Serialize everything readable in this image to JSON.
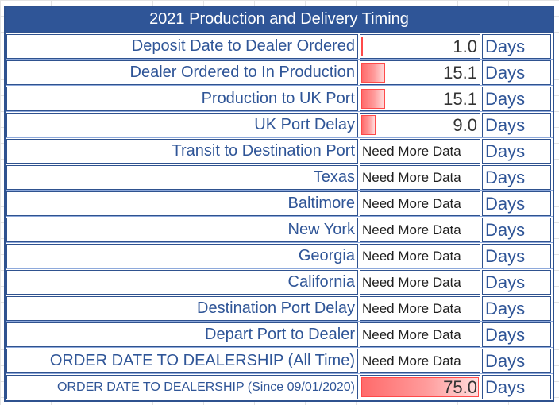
{
  "title": "2021 Production and Delivery Timing",
  "max_value": 75.0,
  "rows": [
    {
      "label": "Deposit Date to Dealer Ordered",
      "value": "1.0",
      "num": 1.0,
      "unit": "Days"
    },
    {
      "label": "Dealer Ordered to In Production",
      "value": "15.1",
      "num": 15.1,
      "unit": "Days"
    },
    {
      "label": "Production to UK Port",
      "value": "15.1",
      "num": 15.1,
      "unit": "Days"
    },
    {
      "label": "UK Port Delay",
      "value": "9.0",
      "num": 9.0,
      "unit": "Days"
    },
    {
      "label": "Transit to Destination Port",
      "value": "Need More Data",
      "unit": "Days"
    },
    {
      "label": "Texas",
      "value": "Need More Data",
      "unit": "Days"
    },
    {
      "label": "Baltimore",
      "value": "Need More Data",
      "unit": "Days"
    },
    {
      "label": "New York",
      "value": "Need More Data",
      "unit": "Days"
    },
    {
      "label": "Georgia",
      "value": "Need More Data",
      "unit": "Days"
    },
    {
      "label": "California",
      "value": "Need More Data",
      "unit": "Days"
    },
    {
      "label": "Destination Port Delay",
      "value": "Need More Data",
      "unit": "Days"
    },
    {
      "label": "Depart Port to Dealer",
      "value": "Need More Data",
      "unit": "Days"
    },
    {
      "label": "ORDER DATE TO DEALERSHIP (All Time)",
      "value": "Need More Data",
      "unit": "Days"
    },
    {
      "label": "ORDER DATE TO DEALERSHIP (Since 09/01/2020)",
      "value": "75.0",
      "num": 75.0,
      "unit": "Days",
      "small": true
    }
  ],
  "colors": {
    "header_bg": "#2f5597",
    "border": "#2f528f",
    "label_text": "#2f5597",
    "databar": "#ff6b6b"
  }
}
